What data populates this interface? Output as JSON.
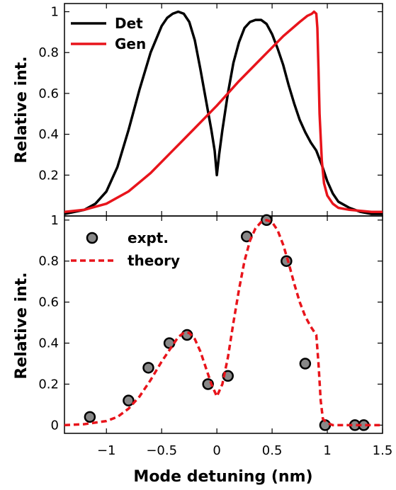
{
  "chart_data": [
    {
      "type": "line",
      "ylabel": "Relative int.",
      "xlim": [
        -1.38,
        1.5
      ],
      "ylim": [
        0.0,
        1.04
      ],
      "yticks": [
        0.2,
        0.4,
        0.6,
        0.8,
        1
      ],
      "ytick_labels": [
        "0.2",
        "0.4",
        "0.6",
        "0.8",
        "1"
      ],
      "legend_position": "top-left",
      "series": [
        {
          "name": "Det",
          "color": "#000000",
          "x": [
            -1.38,
            -1.2,
            -1.1,
            -1.0,
            -0.9,
            -0.8,
            -0.7,
            -0.6,
            -0.5,
            -0.45,
            -0.4,
            -0.35,
            -0.3,
            -0.25,
            -0.2,
            -0.15,
            -0.1,
            -0.05,
            -0.02,
            0.0,
            0.02,
            0.05,
            0.1,
            0.15,
            0.2,
            0.25,
            0.3,
            0.35,
            0.4,
            0.45,
            0.5,
            0.55,
            0.6,
            0.65,
            0.7,
            0.75,
            0.8,
            0.85,
            0.9,
            0.95,
            1.0,
            1.05,
            1.1,
            1.2,
            1.3,
            1.4,
            1.5
          ],
          "y": [
            0.01,
            0.03,
            0.06,
            0.12,
            0.24,
            0.42,
            0.62,
            0.8,
            0.93,
            0.97,
            0.99,
            1.0,
            0.99,
            0.95,
            0.86,
            0.72,
            0.57,
            0.42,
            0.32,
            0.2,
            0.3,
            0.42,
            0.6,
            0.75,
            0.85,
            0.92,
            0.95,
            0.96,
            0.96,
            0.94,
            0.89,
            0.82,
            0.74,
            0.64,
            0.55,
            0.47,
            0.41,
            0.36,
            0.32,
            0.25,
            0.17,
            0.11,
            0.07,
            0.04,
            0.02,
            0.01,
            0.01
          ]
        },
        {
          "name": "Gen",
          "color": "#e8141b",
          "x": [
            -1.38,
            -1.2,
            -1.0,
            -0.8,
            -0.6,
            -0.4,
            -0.2,
            0.0,
            0.2,
            0.4,
            0.6,
            0.75,
            0.82,
            0.86,
            0.88,
            0.9,
            0.91,
            0.92,
            0.93,
            0.95,
            0.97,
            1.0,
            1.05,
            1.1,
            1.2,
            1.3,
            1.4,
            1.5
          ],
          "y": [
            0.02,
            0.03,
            0.06,
            0.12,
            0.21,
            0.32,
            0.43,
            0.54,
            0.66,
            0.77,
            0.88,
            0.95,
            0.98,
            0.99,
            1.0,
            0.99,
            0.92,
            0.72,
            0.5,
            0.27,
            0.16,
            0.1,
            0.06,
            0.04,
            0.03,
            0.025,
            0.02,
            0.02
          ]
        }
      ]
    },
    {
      "type": "scatter",
      "xlabel": "Mode detuning (nm)",
      "ylabel": "Relative int.",
      "xlim": [
        -1.38,
        1.5
      ],
      "ylim": [
        -0.04,
        1.02
      ],
      "xticks": [
        -1,
        -0.5,
        0,
        0.5,
        1,
        1.5
      ],
      "xtick_labels": [
        "−1",
        "−0.5",
        "0",
        "0.5",
        "1",
        "1.5"
      ],
      "yticks": [
        0,
        0.2,
        0.4,
        0.6,
        0.8,
        1
      ],
      "ytick_labels": [
        "0",
        "0.2",
        "0.4",
        "0.6",
        "0.8",
        "1"
      ],
      "legend_position": "top-left",
      "series": [
        {
          "name": "expt.",
          "kind": "scatter",
          "color": "#888888",
          "x": [
            -1.15,
            -0.8,
            -0.62,
            -0.43,
            -0.27,
            -0.08,
            0.1,
            0.27,
            0.45,
            0.63,
            0.8,
            0.98,
            1.25,
            1.33
          ],
          "y": [
            0.04,
            0.12,
            0.28,
            0.4,
            0.44,
            0.2,
            0.24,
            0.92,
            1.0,
            0.8,
            0.3,
            0.0,
            0.0,
            0.0
          ]
        },
        {
          "name": "theory",
          "kind": "line",
          "color": "#e8141b",
          "x": [
            -1.38,
            -1.2,
            -1.0,
            -0.9,
            -0.8,
            -0.7,
            -0.6,
            -0.5,
            -0.4,
            -0.35,
            -0.3,
            -0.25,
            -0.2,
            -0.15,
            -0.1,
            -0.05,
            0.0,
            0.05,
            0.1,
            0.15,
            0.2,
            0.25,
            0.3,
            0.35,
            0.4,
            0.45,
            0.5,
            0.55,
            0.6,
            0.65,
            0.7,
            0.75,
            0.8,
            0.85,
            0.9,
            0.92,
            0.94,
            0.96,
            1.0,
            1.05,
            1.2,
            1.5
          ],
          "y": [
            0.0,
            0.005,
            0.02,
            0.04,
            0.08,
            0.14,
            0.22,
            0.31,
            0.39,
            0.43,
            0.45,
            0.45,
            0.42,
            0.36,
            0.28,
            0.2,
            0.14,
            0.2,
            0.33,
            0.5,
            0.66,
            0.8,
            0.9,
            0.96,
            0.99,
            1.0,
            0.99,
            0.95,
            0.88,
            0.79,
            0.69,
            0.6,
            0.53,
            0.48,
            0.44,
            0.3,
            0.12,
            0.03,
            0.01,
            0.0,
            0.0,
            0.0
          ]
        }
      ]
    }
  ]
}
